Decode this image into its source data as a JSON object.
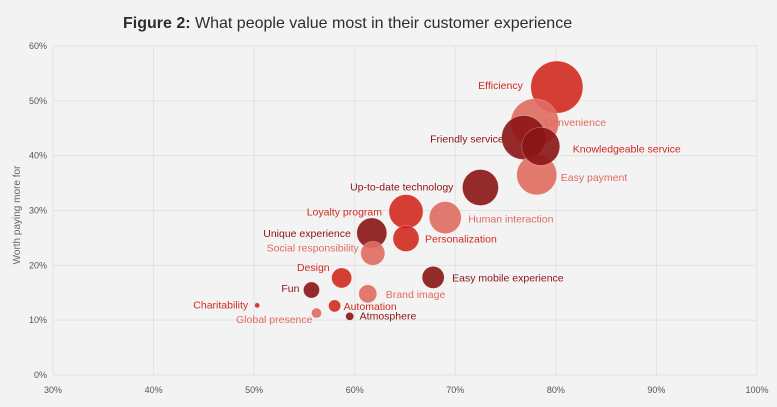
{
  "figure": {
    "label": "Figure 2:",
    "title": "What people value most in their customer experience"
  },
  "chart_data": {
    "type": "scatter",
    "xlim": [
      0.3,
      1.0
    ],
    "ylim": [
      0,
      0.6
    ],
    "x_ticks": [
      "30%",
      "40%",
      "50%",
      "60%",
      "70%",
      "80%",
      "90%",
      "100%"
    ],
    "y_ticks": [
      "0%",
      "10%",
      "20%",
      "30%",
      "40%",
      "50%",
      "60%"
    ],
    "xlabel": "",
    "ylabel": "Worth paying more for",
    "grid": true,
    "colors": {
      "dark": "#8b1414",
      "red": "#d02a1f",
      "light": "#e06b60"
    },
    "points": [
      {
        "label": "Efficiency",
        "x": 0.801,
        "y": 0.525,
        "size": 26,
        "color": "red",
        "label_color": "red"
      },
      {
        "label": "Convenience",
        "x": 0.779,
        "y": 0.46,
        "size": 24,
        "color": "light",
        "label_color": "light"
      },
      {
        "label": "Friendly service",
        "x": 0.768,
        "y": 0.433,
        "size": 22,
        "color": "dark",
        "label_color": "dark"
      },
      {
        "label": "Knowledgeable service",
        "x": 0.785,
        "y": 0.417,
        "size": 19,
        "color": "dark",
        "label_color": "red"
      },
      {
        "label": "Easy payment",
        "x": 0.781,
        "y": 0.365,
        "size": 20,
        "color": "light",
        "label_color": "light"
      },
      {
        "label": "Up-to-date technology",
        "x": 0.725,
        "y": 0.342,
        "size": 18,
        "color": "dark",
        "label_color": "dark"
      },
      {
        "label": "Loyalty program",
        "x": 0.651,
        "y": 0.298,
        "size": 17,
        "color": "red",
        "label_color": "red"
      },
      {
        "label": "Human interaction",
        "x": 0.69,
        "y": 0.287,
        "size": 16,
        "color": "light",
        "label_color": "light"
      },
      {
        "label": "Unique experience",
        "x": 0.617,
        "y": 0.259,
        "size": 15,
        "color": "dark",
        "label_color": "dark"
      },
      {
        "label": "Personalization",
        "x": 0.651,
        "y": 0.249,
        "size": 13,
        "color": "red",
        "label_color": "red"
      },
      {
        "label": "Social responsibility",
        "x": 0.618,
        "y": 0.222,
        "size": 12,
        "color": "light",
        "label_color": "light"
      },
      {
        "label": "Design",
        "x": 0.587,
        "y": 0.177,
        "size": 10,
        "color": "red",
        "label_color": "red"
      },
      {
        "label": "Easy mobile experience",
        "x": 0.678,
        "y": 0.178,
        "size": 11,
        "color": "dark",
        "label_color": "dark"
      },
      {
        "label": "Fun",
        "x": 0.557,
        "y": 0.155,
        "size": 8,
        "color": "dark",
        "label_color": "dark"
      },
      {
        "label": "Brand image",
        "x": 0.613,
        "y": 0.148,
        "size": 9,
        "color": "light",
        "label_color": "light"
      },
      {
        "label": "Charitability",
        "x": 0.503,
        "y": 0.127,
        "size": 2.5,
        "color": "red",
        "label_color": "red"
      },
      {
        "label": "Automation",
        "x": 0.58,
        "y": 0.126,
        "size": 6,
        "color": "red",
        "label_color": "red"
      },
      {
        "label": "Global presence",
        "x": 0.562,
        "y": 0.113,
        "size": 5,
        "color": "light",
        "label_color": "light"
      },
      {
        "label": "Atmosphere",
        "x": 0.595,
        "y": 0.107,
        "size": 4,
        "color": "dark",
        "label_color": "dark"
      }
    ]
  }
}
